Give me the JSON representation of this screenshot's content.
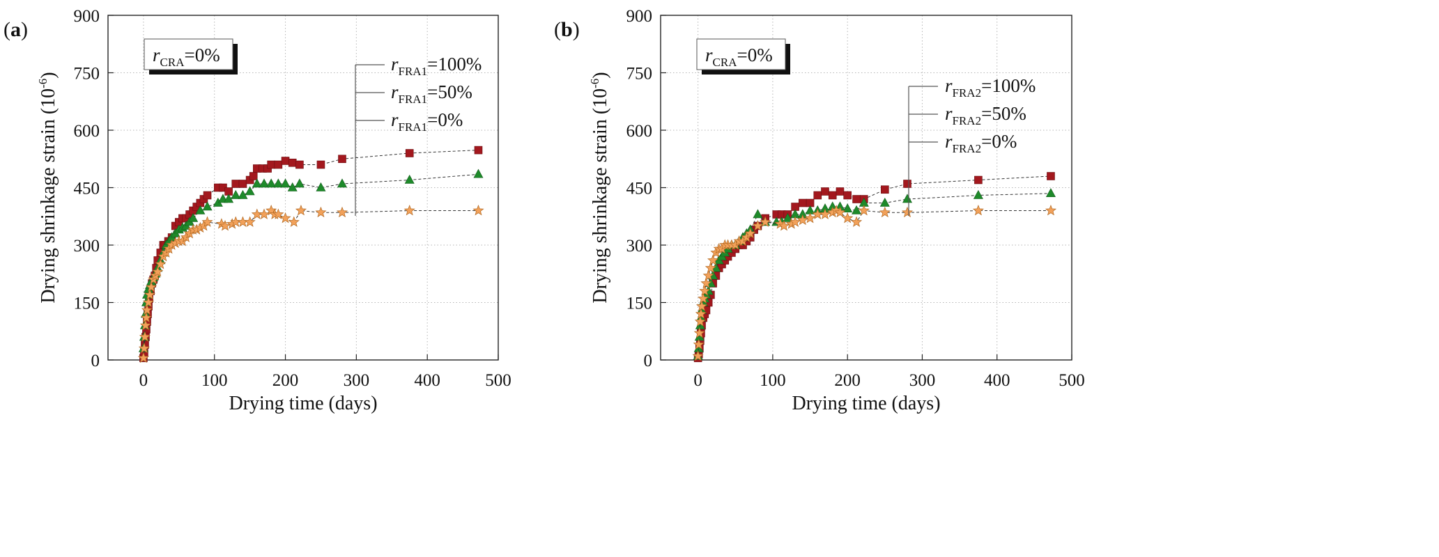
{
  "chart_data": [
    {
      "type": "scatter",
      "panel_label": {
        "open": "(",
        "letter": "a",
        "close": ")"
      },
      "xlabel": "Drying time (days)",
      "ylabel": {
        "main": "Drying shrinkage strain (10",
        "sup": "-6",
        "close": ")"
      },
      "xlim": [
        -50,
        500
      ],
      "ylim": [
        0,
        900
      ],
      "xticks": [
        "0",
        "100",
        "200",
        "300",
        "400",
        "500"
      ],
      "yticks": [
        "0",
        "150",
        "300",
        "450",
        "600",
        "750",
        "900"
      ],
      "annotation": {
        "r": "r",
        "sub": "CRA",
        "rest": "=0%"
      },
      "legend": [
        {
          "r": "r",
          "sub": "FRA1",
          "rest": "=100%"
        },
        {
          "r": "r",
          "sub": "FRA1",
          "rest": "=50%"
        },
        {
          "r": "r",
          "sub": "FRA1",
          "rest": "=0%"
        }
      ],
      "series": [
        {
          "name": "rFRA1=100%",
          "marker": "square",
          "color": "#A3181E",
          "x": [
            0,
            1,
            2,
            3,
            4,
            5,
            6,
            7,
            8,
            10,
            12,
            14,
            16,
            18,
            20,
            24,
            28,
            30,
            35,
            40,
            45,
            50,
            55,
            60,
            65,
            70,
            75,
            80,
            85,
            90,
            105,
            112,
            120,
            130,
            140,
            150,
            155,
            160,
            168,
            175,
            180,
            190,
            200,
            210,
            220,
            250,
            280,
            375,
            472
          ],
          "y": [
            5,
            20,
            40,
            60,
            80,
            100,
            120,
            140,
            160,
            180,
            200,
            210,
            220,
            240,
            260,
            280,
            300,
            300,
            310,
            320,
            350,
            360,
            370,
            370,
            380,
            390,
            400,
            410,
            420,
            430,
            450,
            450,
            440,
            460,
            460,
            470,
            480,
            500,
            500,
            500,
            510,
            510,
            520,
            515,
            510,
            510,
            525,
            540,
            548
          ]
        },
        {
          "name": "rFRA1=50%",
          "marker": "triangle",
          "color": "#1E8A2A",
          "x": [
            0,
            1,
            2,
            3,
            4,
            5,
            7,
            9,
            11,
            14,
            17,
            20,
            24,
            28,
            32,
            36,
            40,
            45,
            50,
            55,
            60,
            65,
            70,
            80,
            90,
            105,
            112,
            120,
            130,
            140,
            150,
            160,
            170,
            180,
            190,
            200,
            210,
            220,
            250,
            280,
            375,
            472
          ],
          "y": [
            30,
            60,
            90,
            120,
            150,
            170,
            185,
            195,
            205,
            215,
            225,
            240,
            260,
            280,
            300,
            310,
            320,
            330,
            340,
            345,
            350,
            360,
            370,
            390,
            400,
            410,
            420,
            420,
            430,
            430,
            440,
            460,
            460,
            460,
            460,
            460,
            450,
            460,
            450,
            460,
            470,
            485
          ]
        },
        {
          "name": "rFRA1=0%",
          "marker": "star",
          "color": "#F2A15A",
          "x": [
            0,
            1,
            2,
            3,
            4,
            5,
            7,
            9,
            11,
            14,
            17,
            20,
            24,
            28,
            32,
            36,
            40,
            45,
            50,
            55,
            60,
            65,
            70,
            75,
            80,
            85,
            90,
            110,
            115,
            125,
            130,
            140,
            150,
            160,
            170,
            180,
            185,
            190,
            200,
            212,
            222,
            250,
            280,
            375,
            472
          ],
          "y": [
            5,
            30,
            60,
            90,
            110,
            130,
            150,
            170,
            190,
            210,
            220,
            230,
            250,
            270,
            280,
            290,
            300,
            305,
            310,
            310,
            320,
            330,
            340,
            340,
            345,
            350,
            360,
            355,
            350,
            355,
            360,
            360,
            360,
            380,
            380,
            390,
            380,
            380,
            370,
            360,
            390,
            385,
            385,
            390,
            390
          ]
        }
      ]
    },
    {
      "type": "scatter",
      "panel_label": {
        "open": "(",
        "letter": "b",
        "close": ")"
      },
      "xlabel": "Drying time (days)",
      "ylabel": {
        "main": "Drying shrinkage strain (10",
        "sup": "-6",
        "close": ")"
      },
      "xlim": [
        -50,
        500
      ],
      "ylim": [
        0,
        900
      ],
      "xticks": [
        "0",
        "100",
        "200",
        "300",
        "400",
        "500"
      ],
      "yticks": [
        "0",
        "150",
        "300",
        "450",
        "600",
        "750",
        "900"
      ],
      "annotation": {
        "r": "r",
        "sub": "CRA",
        "rest": "=0%"
      },
      "legend": [
        {
          "r": "r",
          "sub": "FRA2",
          "rest": "=100%"
        },
        {
          "r": "r",
          "sub": "FRA2",
          "rest": "=50%"
        },
        {
          "r": "r",
          "sub": "FRA2",
          "rest": "=0%"
        }
      ],
      "series": [
        {
          "name": "rFRA2=100%",
          "marker": "square",
          "color": "#A3181E",
          "x": [
            0,
            1,
            2,
            3,
            4,
            5,
            7,
            9,
            11,
            14,
            17,
            20,
            24,
            28,
            32,
            36,
            40,
            45,
            50,
            55,
            60,
            65,
            70,
            75,
            80,
            90,
            105,
            112,
            120,
            130,
            140,
            150,
            160,
            170,
            180,
            190,
            200,
            212,
            222,
            250,
            280,
            375,
            472
          ],
          "y": [
            5,
            15,
            30,
            50,
            70,
            90,
            110,
            120,
            130,
            150,
            170,
            200,
            220,
            240,
            250,
            260,
            270,
            280,
            290,
            300,
            300,
            310,
            320,
            340,
            350,
            370,
            380,
            380,
            380,
            400,
            410,
            410,
            430,
            440,
            430,
            440,
            430,
            420,
            420,
            445,
            460,
            470,
            480
          ]
        },
        {
          "name": "rFRA2=50%",
          "marker": "triangle",
          "color": "#1E8A2A",
          "x": [
            0,
            1,
            2,
            3,
            4,
            5,
            7,
            9,
            11,
            14,
            17,
            20,
            24,
            28,
            32,
            36,
            40,
            45,
            50,
            55,
            60,
            65,
            70,
            80,
            90,
            105,
            112,
            120,
            130,
            140,
            150,
            160,
            170,
            180,
            190,
            200,
            212,
            222,
            250,
            280,
            375,
            472
          ],
          "y": [
            10,
            30,
            60,
            90,
            110,
            130,
            150,
            160,
            170,
            180,
            200,
            220,
            240,
            260,
            270,
            280,
            290,
            300,
            300,
            310,
            320,
            330,
            340,
            380,
            360,
            360,
            360,
            370,
            380,
            380,
            390,
            390,
            395,
            400,
            400,
            395,
            390,
            410,
            410,
            420,
            430,
            435
          ]
        },
        {
          "name": "rFRA2=0%",
          "marker": "star",
          "color": "#F2A15A",
          "x": [
            0,
            1,
            2,
            3,
            4,
            5,
            7,
            9,
            11,
            14,
            17,
            20,
            24,
            28,
            32,
            36,
            40,
            45,
            50,
            55,
            60,
            65,
            70,
            80,
            90,
            110,
            115,
            125,
            130,
            140,
            150,
            160,
            170,
            180,
            185,
            190,
            200,
            212,
            222,
            250,
            280,
            375,
            472
          ],
          "y": [
            10,
            40,
            70,
            100,
            120,
            140,
            160,
            180,
            200,
            220,
            240,
            260,
            280,
            290,
            290,
            300,
            300,
            300,
            300,
            310,
            310,
            320,
            330,
            350,
            360,
            355,
            350,
            355,
            360,
            365,
            370,
            380,
            380,
            385,
            390,
            385,
            370,
            360,
            390,
            385,
            385,
            390,
            390
          ]
        }
      ]
    }
  ]
}
